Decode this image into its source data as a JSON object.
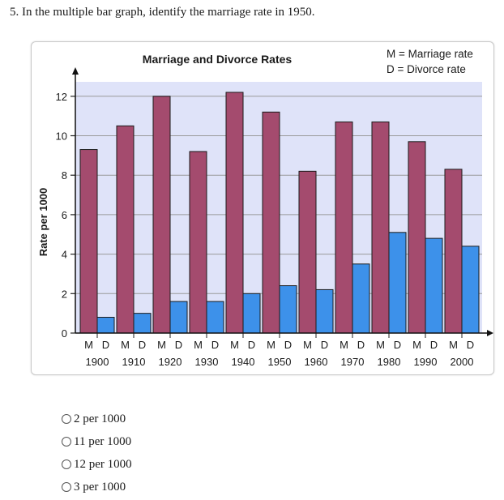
{
  "question": {
    "number": "5.",
    "text": "In the multiple bar graph, identify the marriage rate in 1950."
  },
  "chart_data": {
    "type": "bar",
    "title": "Marriage and Divorce Rates",
    "ylabel": "Rate per 1000",
    "xlabel": "",
    "ylim": [
      0,
      13
    ],
    "yticks": [
      0,
      2,
      4,
      6,
      8,
      10,
      12
    ],
    "categories": [
      "1900",
      "1910",
      "1920",
      "1930",
      "1940",
      "1950",
      "1960",
      "1970",
      "1980",
      "1990",
      "2000"
    ],
    "bar_letters": [
      "M",
      "D"
    ],
    "legend": [
      "M = Marriage rate",
      "D = Divorce rate"
    ],
    "legend_position": "top-right",
    "grid": true,
    "series": [
      {
        "name": "Marriage rate",
        "color": "#a44b6e",
        "values": [
          9.3,
          10.5,
          12.0,
          9.2,
          12.2,
          11.2,
          8.2,
          10.7,
          10.7,
          9.7,
          8.3
        ]
      },
      {
        "name": "Divorce rate",
        "color": "#3d91ea",
        "values": [
          0.8,
          1.0,
          1.6,
          1.6,
          2.0,
          2.4,
          2.2,
          3.5,
          5.1,
          4.8,
          4.4
        ]
      }
    ],
    "plot_background": "#dfe3f9"
  },
  "options": [
    {
      "label": "2 per 1000"
    },
    {
      "label": "11 per 1000"
    },
    {
      "label": "12 per 1000"
    },
    {
      "label": "3 per 1000"
    }
  ]
}
